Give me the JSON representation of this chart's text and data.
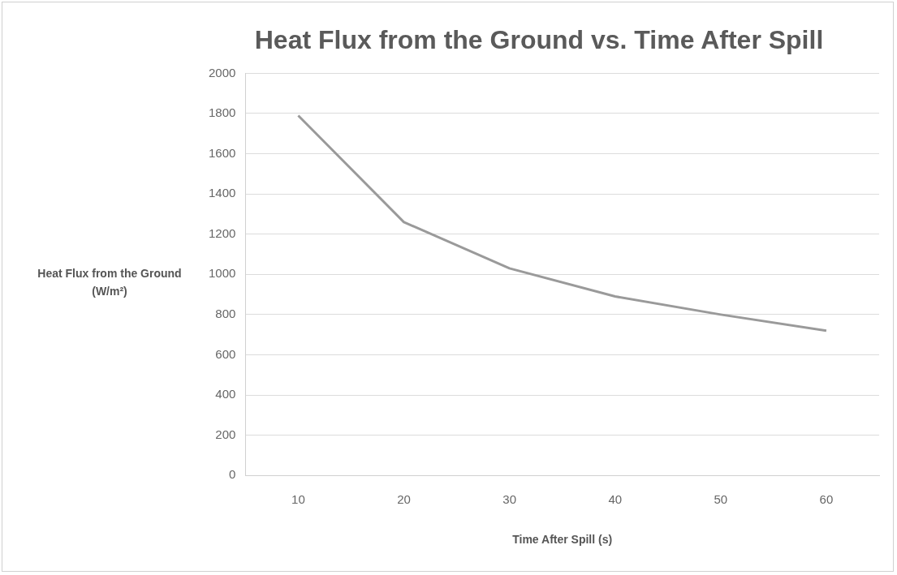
{
  "chart_data": {
    "type": "line",
    "title": "Heat Flux from the Ground vs. Time After Spill",
    "xlabel": "Time After Spill (s)",
    "ylabel": "Heat Flux from the Ground (W/m²)",
    "categories": [
      "10",
      "20",
      "30",
      "40",
      "50",
      "60"
    ],
    "series": [
      {
        "color": "#9a9a9a",
        "values": [
          1790,
          1260,
          1030,
          890,
          800,
          720
        ]
      }
    ],
    "ylim": [
      0,
      2000
    ],
    "yticks": [
      0,
      200,
      400,
      600,
      800,
      1000,
      1200,
      1400,
      1600,
      1800,
      2000
    ],
    "grid": "y",
    "legend": false,
    "marker": "none",
    "line_style": "solid"
  }
}
